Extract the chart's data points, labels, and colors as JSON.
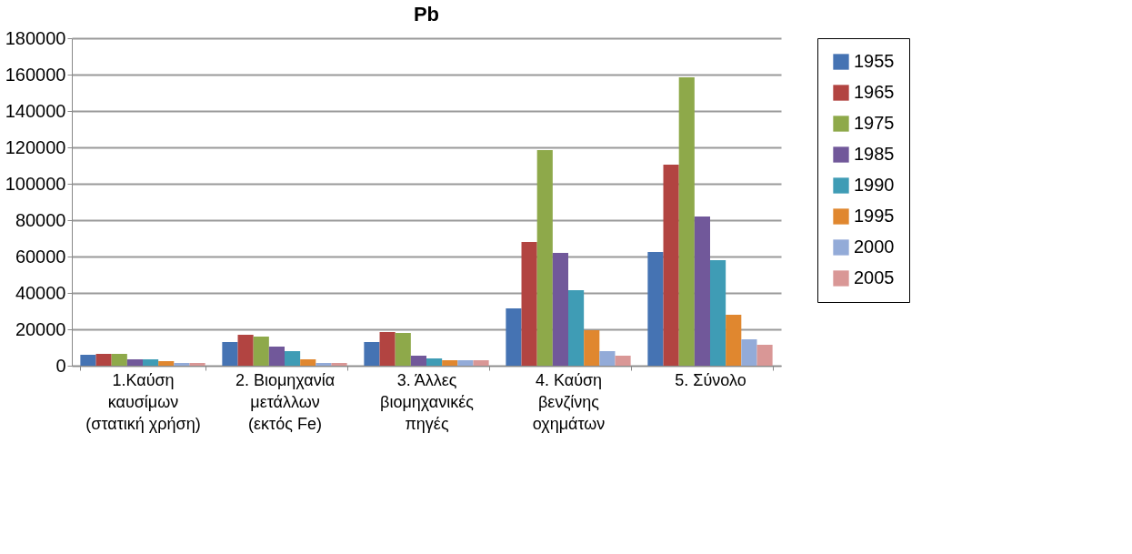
{
  "chart_data": {
    "type": "bar",
    "title": "Pb",
    "categories": [
      "1.Καύση\nκαυσίμων\n(στατική χρήση)",
      "2. Βιομηχανία\nμετάλλων\n(εκτός Fe)",
      "3. Άλλες\nβιομηχανικές\nπηγές",
      "4. Καύση\nβενζίνης\nοχημάτων",
      "5. Σύνολο"
    ],
    "series": [
      {
        "name": "1955",
        "color": "#4573b3",
        "values": [
          6000,
          13000,
          13000,
          31500,
          62500
        ]
      },
      {
        "name": "1965",
        "color": "#b24441",
        "values": [
          6500,
          17000,
          18500,
          68000,
          110500
        ]
      },
      {
        "name": "1975",
        "color": "#8ea94a",
        "values": [
          6500,
          16000,
          18000,
          118500,
          158500
        ]
      },
      {
        "name": "1985",
        "color": "#71589a",
        "values": [
          3500,
          10500,
          5500,
          62000,
          82000
        ]
      },
      {
        "name": "1990",
        "color": "#3f9cb5",
        "values": [
          3500,
          8000,
          4000,
          41500,
          58000
        ]
      },
      {
        "name": "1995",
        "color": "#e0872f",
        "values": [
          2500,
          3500,
          3000,
          19500,
          28000
        ]
      },
      {
        "name": "2000",
        "color": "#93abd8",
        "values": [
          1500,
          1500,
          3000,
          8000,
          14500
        ]
      },
      {
        "name": "2005",
        "color": "#d99796",
        "values": [
          1500,
          1500,
          3000,
          5500,
          11500
        ]
      }
    ],
    "ylim": [
      0,
      180000
    ],
    "yticks": [
      0,
      20000,
      40000,
      60000,
      80000,
      100000,
      120000,
      140000,
      160000,
      180000
    ],
    "grid": "y",
    "legend": "right"
  }
}
